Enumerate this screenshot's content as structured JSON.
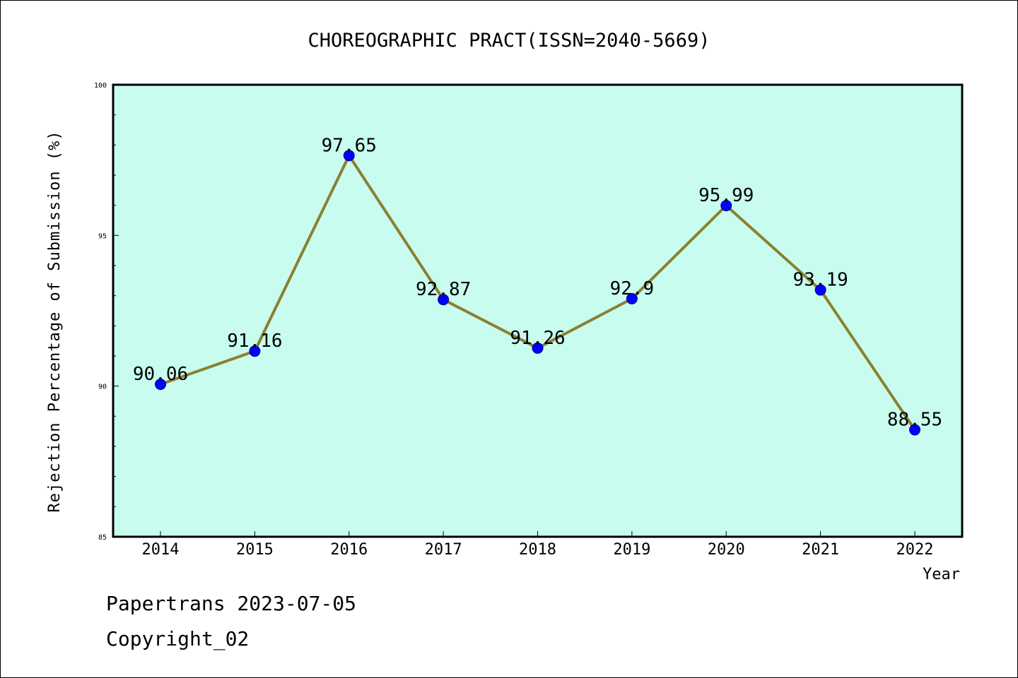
{
  "chart_data": {
    "type": "line",
    "title": "CHOREOGRAPHIC PRACT(ISSN=2040-5669)",
    "xlabel": "Year",
    "ylabel": "Rejection Percentage of Submission (%)",
    "categories": [
      "2014",
      "2015",
      "2016",
      "2017",
      "2018",
      "2019",
      "2020",
      "2021",
      "2022"
    ],
    "values": [
      90.06,
      91.16,
      97.65,
      92.87,
      91.26,
      92.9,
      95.99,
      93.19,
      88.55
    ],
    "data_labels": [
      "90.06",
      "91.16",
      "97.65",
      "92.87",
      "91.26",
      "92.9",
      "95.99",
      "93.19",
      "88.55"
    ],
    "ylim": [
      85,
      100
    ],
    "yticks": [
      85,
      90,
      95,
      100
    ],
    "ytick_labels": [
      "85",
      "90",
      "95",
      "100"
    ],
    "grid": false,
    "colors": {
      "plot_background": "#c8fcee",
      "line": "#8b8032",
      "marker": "#0000ff",
      "marker_edge": "#00008b"
    }
  },
  "footer": {
    "line1": "Papertrans 2023-07-05",
    "line2": "Copyright_02"
  }
}
